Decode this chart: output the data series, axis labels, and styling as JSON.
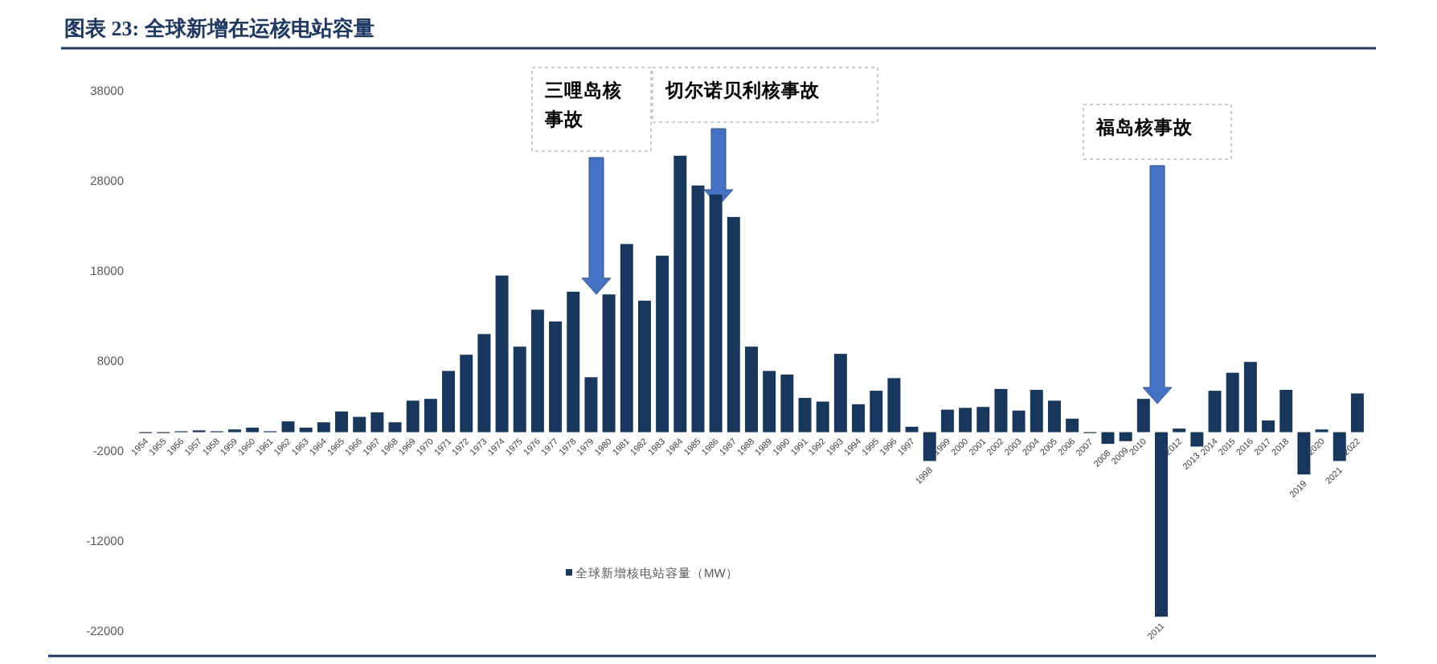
{
  "chart_data": {
    "type": "bar",
    "title": "图表 23:  全球新增在运核电站容量",
    "categories": [
      "1954",
      "1955",
      "1956",
      "1957",
      "1958",
      "1959",
      "1960",
      "1961",
      "1962",
      "1963",
      "1964",
      "1965",
      "1966",
      "1967",
      "1968",
      "1969",
      "1970",
      "1971",
      "1972",
      "1973",
      "1974",
      "1975",
      "1976",
      "1977",
      "1978",
      "1979",
      "1980",
      "1981",
      "1982",
      "1983",
      "1984",
      "1985",
      "1986",
      "1987",
      "1988",
      "1989",
      "1990",
      "1991",
      "1992",
      "1993",
      "1994",
      "1995",
      "1996",
      "1997",
      "1998",
      "1999",
      "2000",
      "2001",
      "2002",
      "2003",
      "2004",
      "2005",
      "2006",
      "2007",
      "2008",
      "2009",
      "2010",
      "2011",
      "2012",
      "2013",
      "2014",
      "2015",
      "2016",
      "2017",
      "2018",
      "2019",
      "2020",
      "2021",
      "2022"
    ],
    "series": [
      {
        "name": "全球新增核电站容量（MW）",
        "color": "#17375e",
        "values": [
          0,
          0,
          100,
          200,
          100,
          300,
          500,
          100,
          1200,
          500,
          1100,
          2300,
          1700,
          2200,
          1100,
          3500,
          3700,
          6800,
          8600,
          10900,
          17400,
          9500,
          13600,
          12300,
          15600,
          6100,
          15300,
          20900,
          14600,
          19600,
          30700,
          27400,
          26400,
          23900,
          9500,
          6800,
          6400,
          3800,
          3400,
          8700,
          3100,
          4600,
          6000,
          600,
          -3200,
          2500,
          2700,
          2800,
          4800,
          2400,
          4700,
          3500,
          1500,
          -100,
          -1300,
          -1000,
          3700,
          -20500,
          400,
          -1600,
          4600,
          6600,
          7800,
          1300,
          4700,
          -4700,
          300,
          -3200,
          4300
        ]
      }
    ],
    "ylim": [
      -22000,
      38000
    ],
    "yticks": [
      -22000,
      -12000,
      -2000,
      8000,
      18000,
      28000,
      38000
    ],
    "legend": "bottom",
    "annotations": [
      "三哩岛核事故",
      "切尔诺贝利核事故",
      "福岛核事故"
    ]
  }
}
